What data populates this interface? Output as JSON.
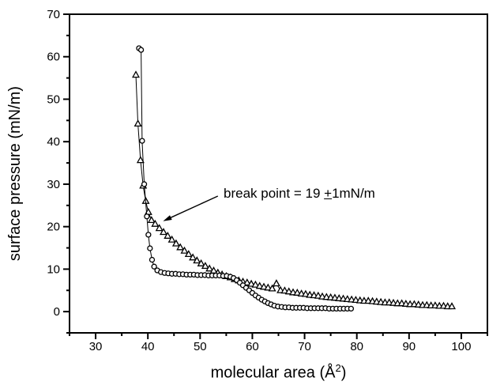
{
  "figure": {
    "background": "#ffffff",
    "ink_color": "#000000"
  },
  "chart_data": {
    "type": "scatter",
    "title": "",
    "xlabel": {
      "prefix": "molecular area (Å",
      "superscript": "2",
      "suffix": ")"
    },
    "ylabel": "surface pressure (mN/m)",
    "x_axis": {
      "min": 25,
      "max": 105,
      "major_ticks": [
        30,
        40,
        50,
        60,
        70,
        80,
        90,
        100
      ],
      "major_tick_labels": [
        "30",
        "40",
        "50",
        "60",
        "70",
        "80",
        "90",
        "100"
      ],
      "minor_ticks": [
        25,
        35,
        45,
        55,
        65,
        75,
        85,
        95,
        105
      ]
    },
    "y_axis": {
      "min": -5,
      "max": 70,
      "major_ticks": [
        0,
        10,
        20,
        30,
        40,
        50,
        60,
        70
      ],
      "major_tick_labels": [
        "0",
        "10",
        "20",
        "30",
        "40",
        "50",
        "60",
        "70"
      ],
      "minor_ticks": [
        -5,
        5,
        15,
        25,
        35,
        45,
        55,
        65
      ]
    },
    "grid": false,
    "legend": "none",
    "series": [
      {
        "name": "triangle-isotherm",
        "marker": "triangle",
        "points": [
          [
            37.7,
            55.7
          ],
          [
            38.1,
            44.2
          ],
          [
            38.6,
            35.6
          ],
          [
            39.1,
            29.6
          ],
          [
            39.6,
            26.0
          ],
          [
            40.1,
            23.4
          ],
          [
            40.7,
            21.5
          ],
          [
            41.4,
            20.6
          ],
          [
            42.2,
            19.6
          ],
          [
            43.0,
            18.7
          ],
          [
            43.8,
            17.8
          ],
          [
            44.6,
            16.9
          ],
          [
            45.4,
            16.0
          ],
          [
            46.2,
            15.1
          ],
          [
            47.0,
            14.3
          ],
          [
            47.8,
            13.5
          ],
          [
            48.6,
            12.7
          ],
          [
            49.4,
            12.0
          ],
          [
            50.2,
            11.3
          ],
          [
            51.0,
            10.7
          ],
          [
            51.8,
            10.1
          ],
          [
            52.6,
            9.6
          ],
          [
            53.4,
            9.1
          ],
          [
            54.2,
            8.7
          ],
          [
            55.0,
            8.3
          ],
          [
            55.8,
            8.0
          ],
          [
            56.6,
            7.6
          ],
          [
            57.4,
            7.3
          ],
          [
            58.2,
            7.0
          ],
          [
            59.0,
            6.8
          ],
          [
            59.8,
            6.5
          ],
          [
            60.6,
            6.3
          ],
          [
            61.4,
            6.0
          ],
          [
            62.2,
            5.8
          ],
          [
            63.0,
            5.6
          ],
          [
            63.8,
            5.4
          ],
          [
            64.6,
            6.6
          ],
          [
            65.4,
            5.0
          ],
          [
            66.2,
            4.9
          ],
          [
            67.0,
            4.7
          ],
          [
            67.8,
            4.5
          ],
          [
            68.6,
            4.4
          ],
          [
            69.4,
            4.2
          ],
          [
            70.2,
            4.1
          ],
          [
            71.0,
            3.9
          ],
          [
            71.8,
            3.8
          ],
          [
            72.6,
            3.7
          ],
          [
            73.4,
            3.5
          ],
          [
            74.2,
            3.4
          ],
          [
            75.0,
            3.3
          ],
          [
            75.8,
            3.2
          ],
          [
            76.6,
            3.1
          ],
          [
            77.4,
            3.0
          ],
          [
            78.2,
            2.9
          ],
          [
            79.0,
            2.8
          ],
          [
            79.8,
            2.7
          ],
          [
            80.6,
            2.6
          ],
          [
            81.4,
            2.5
          ],
          [
            82.2,
            2.5
          ],
          [
            83.0,
            2.4
          ],
          [
            83.8,
            2.3
          ],
          [
            84.6,
            2.2
          ],
          [
            85.4,
            2.1
          ],
          [
            86.2,
            2.1
          ],
          [
            87.0,
            2.0
          ],
          [
            87.8,
            1.9
          ],
          [
            88.6,
            1.9
          ],
          [
            89.4,
            1.8
          ],
          [
            90.2,
            1.7
          ],
          [
            91.0,
            1.7
          ],
          [
            91.8,
            1.6
          ],
          [
            92.6,
            1.5
          ],
          [
            93.4,
            1.5
          ],
          [
            94.2,
            1.4
          ],
          [
            95.0,
            1.4
          ],
          [
            95.8,
            1.3
          ],
          [
            96.6,
            1.3
          ],
          [
            97.4,
            1.2
          ],
          [
            98.2,
            1.2
          ]
        ]
      },
      {
        "name": "circle-isotherm",
        "marker": "circle",
        "points": [
          [
            38.3,
            62.0
          ],
          [
            38.7,
            61.6
          ],
          [
            38.9,
            40.2
          ],
          [
            39.3,
            30.0
          ],
          [
            39.8,
            22.4
          ],
          [
            40.1,
            18.1
          ],
          [
            40.4,
            14.9
          ],
          [
            40.8,
            12.2
          ],
          [
            41.2,
            10.6
          ],
          [
            41.8,
            9.7
          ],
          [
            42.5,
            9.3
          ],
          [
            43.2,
            9.1
          ],
          [
            43.9,
            9.0
          ],
          [
            44.6,
            8.9
          ],
          [
            45.3,
            8.9
          ],
          [
            46.0,
            8.8
          ],
          [
            46.7,
            8.8
          ],
          [
            47.4,
            8.7
          ],
          [
            48.1,
            8.7
          ],
          [
            48.8,
            8.7
          ],
          [
            49.5,
            8.6
          ],
          [
            50.2,
            8.6
          ],
          [
            50.9,
            8.6
          ],
          [
            51.6,
            8.5
          ],
          [
            52.3,
            8.5
          ],
          [
            53.0,
            8.5
          ],
          [
            53.7,
            8.5
          ],
          [
            54.4,
            8.4
          ],
          [
            55.1,
            8.4
          ],
          [
            55.8,
            8.2
          ],
          [
            56.4,
            7.9
          ],
          [
            57.0,
            7.4
          ],
          [
            57.6,
            6.8
          ],
          [
            58.2,
            6.2
          ],
          [
            58.8,
            5.6
          ],
          [
            59.4,
            5.0
          ],
          [
            60.0,
            4.4
          ],
          [
            60.6,
            3.8
          ],
          [
            61.2,
            3.3
          ],
          [
            61.8,
            2.8
          ],
          [
            62.4,
            2.4
          ],
          [
            63.0,
            2.0
          ],
          [
            63.6,
            1.7
          ],
          [
            64.2,
            1.4
          ],
          [
            64.9,
            1.2
          ],
          [
            65.6,
            1.1
          ],
          [
            66.3,
            1.0
          ],
          [
            67.0,
            1.0
          ],
          [
            67.7,
            0.9
          ],
          [
            68.4,
            0.9
          ],
          [
            69.1,
            0.9
          ],
          [
            69.8,
            0.9
          ],
          [
            70.5,
            0.8
          ],
          [
            71.2,
            0.8
          ],
          [
            71.9,
            0.8
          ],
          [
            72.6,
            0.8
          ],
          [
            73.3,
            0.8
          ],
          [
            74.0,
            0.8
          ],
          [
            74.7,
            0.7
          ],
          [
            75.4,
            0.7
          ],
          [
            76.1,
            0.7
          ],
          [
            76.8,
            0.7
          ],
          [
            77.5,
            0.7
          ],
          [
            78.2,
            0.7
          ],
          [
            78.9,
            0.7
          ]
        ]
      }
    ],
    "annotation": {
      "text_prefix": "break point = 19 ",
      "plus_minus": "+",
      "text_suffix": "1mN/m",
      "arrow_tail_data": [
        53.4,
        27.2
      ],
      "arrow_tip_data": [
        42.9,
        21.3
      ]
    }
  }
}
